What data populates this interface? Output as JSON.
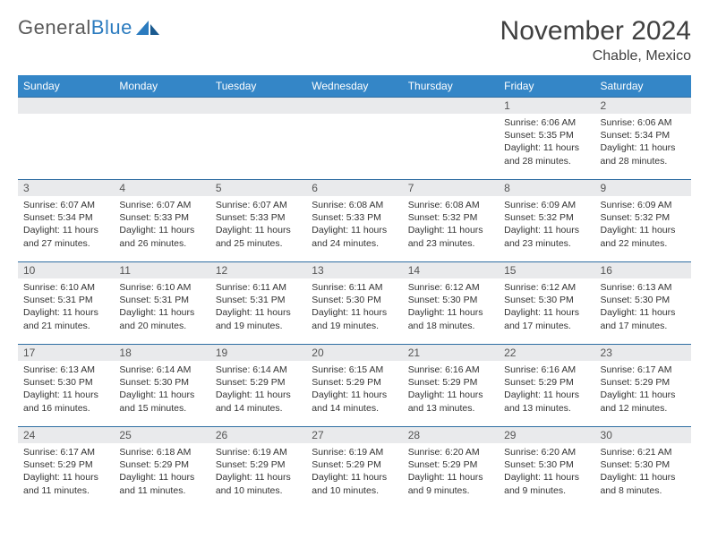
{
  "logo": {
    "text_gray": "General",
    "text_blue": "Blue"
  },
  "title": "November 2024",
  "location": "Chable, Mexico",
  "colors": {
    "header_bg": "#3486c7",
    "header_text": "#ffffff",
    "daynum_bg": "#e9eaec",
    "border": "#2f6ea3",
    "logo_gray": "#5a5a5a",
    "logo_blue": "#2b7bbf"
  },
  "day_names": [
    "Sunday",
    "Monday",
    "Tuesday",
    "Wednesday",
    "Thursday",
    "Friday",
    "Saturday"
  ],
  "weeks": [
    [
      {
        "empty": true
      },
      {
        "empty": true
      },
      {
        "empty": true
      },
      {
        "empty": true
      },
      {
        "empty": true
      },
      {
        "num": "1",
        "sunrise": "Sunrise: 6:06 AM",
        "sunset": "Sunset: 5:35 PM",
        "daylight": "Daylight: 11 hours and 28 minutes."
      },
      {
        "num": "2",
        "sunrise": "Sunrise: 6:06 AM",
        "sunset": "Sunset: 5:34 PM",
        "daylight": "Daylight: 11 hours and 28 minutes."
      }
    ],
    [
      {
        "num": "3",
        "sunrise": "Sunrise: 6:07 AM",
        "sunset": "Sunset: 5:34 PM",
        "daylight": "Daylight: 11 hours and 27 minutes."
      },
      {
        "num": "4",
        "sunrise": "Sunrise: 6:07 AM",
        "sunset": "Sunset: 5:33 PM",
        "daylight": "Daylight: 11 hours and 26 minutes."
      },
      {
        "num": "5",
        "sunrise": "Sunrise: 6:07 AM",
        "sunset": "Sunset: 5:33 PM",
        "daylight": "Daylight: 11 hours and 25 minutes."
      },
      {
        "num": "6",
        "sunrise": "Sunrise: 6:08 AM",
        "sunset": "Sunset: 5:33 PM",
        "daylight": "Daylight: 11 hours and 24 minutes."
      },
      {
        "num": "7",
        "sunrise": "Sunrise: 6:08 AM",
        "sunset": "Sunset: 5:32 PM",
        "daylight": "Daylight: 11 hours and 23 minutes."
      },
      {
        "num": "8",
        "sunrise": "Sunrise: 6:09 AM",
        "sunset": "Sunset: 5:32 PM",
        "daylight": "Daylight: 11 hours and 23 minutes."
      },
      {
        "num": "9",
        "sunrise": "Sunrise: 6:09 AM",
        "sunset": "Sunset: 5:32 PM",
        "daylight": "Daylight: 11 hours and 22 minutes."
      }
    ],
    [
      {
        "num": "10",
        "sunrise": "Sunrise: 6:10 AM",
        "sunset": "Sunset: 5:31 PM",
        "daylight": "Daylight: 11 hours and 21 minutes."
      },
      {
        "num": "11",
        "sunrise": "Sunrise: 6:10 AM",
        "sunset": "Sunset: 5:31 PM",
        "daylight": "Daylight: 11 hours and 20 minutes."
      },
      {
        "num": "12",
        "sunrise": "Sunrise: 6:11 AM",
        "sunset": "Sunset: 5:31 PM",
        "daylight": "Daylight: 11 hours and 19 minutes."
      },
      {
        "num": "13",
        "sunrise": "Sunrise: 6:11 AM",
        "sunset": "Sunset: 5:30 PM",
        "daylight": "Daylight: 11 hours and 19 minutes."
      },
      {
        "num": "14",
        "sunrise": "Sunrise: 6:12 AM",
        "sunset": "Sunset: 5:30 PM",
        "daylight": "Daylight: 11 hours and 18 minutes."
      },
      {
        "num": "15",
        "sunrise": "Sunrise: 6:12 AM",
        "sunset": "Sunset: 5:30 PM",
        "daylight": "Daylight: 11 hours and 17 minutes."
      },
      {
        "num": "16",
        "sunrise": "Sunrise: 6:13 AM",
        "sunset": "Sunset: 5:30 PM",
        "daylight": "Daylight: 11 hours and 17 minutes."
      }
    ],
    [
      {
        "num": "17",
        "sunrise": "Sunrise: 6:13 AM",
        "sunset": "Sunset: 5:30 PM",
        "daylight": "Daylight: 11 hours and 16 minutes."
      },
      {
        "num": "18",
        "sunrise": "Sunrise: 6:14 AM",
        "sunset": "Sunset: 5:30 PM",
        "daylight": "Daylight: 11 hours and 15 minutes."
      },
      {
        "num": "19",
        "sunrise": "Sunrise: 6:14 AM",
        "sunset": "Sunset: 5:29 PM",
        "daylight": "Daylight: 11 hours and 14 minutes."
      },
      {
        "num": "20",
        "sunrise": "Sunrise: 6:15 AM",
        "sunset": "Sunset: 5:29 PM",
        "daylight": "Daylight: 11 hours and 14 minutes."
      },
      {
        "num": "21",
        "sunrise": "Sunrise: 6:16 AM",
        "sunset": "Sunset: 5:29 PM",
        "daylight": "Daylight: 11 hours and 13 minutes."
      },
      {
        "num": "22",
        "sunrise": "Sunrise: 6:16 AM",
        "sunset": "Sunset: 5:29 PM",
        "daylight": "Daylight: 11 hours and 13 minutes."
      },
      {
        "num": "23",
        "sunrise": "Sunrise: 6:17 AM",
        "sunset": "Sunset: 5:29 PM",
        "daylight": "Daylight: 11 hours and 12 minutes."
      }
    ],
    [
      {
        "num": "24",
        "sunrise": "Sunrise: 6:17 AM",
        "sunset": "Sunset: 5:29 PM",
        "daylight": "Daylight: 11 hours and 11 minutes."
      },
      {
        "num": "25",
        "sunrise": "Sunrise: 6:18 AM",
        "sunset": "Sunset: 5:29 PM",
        "daylight": "Daylight: 11 hours and 11 minutes."
      },
      {
        "num": "26",
        "sunrise": "Sunrise: 6:19 AM",
        "sunset": "Sunset: 5:29 PM",
        "daylight": "Daylight: 11 hours and 10 minutes."
      },
      {
        "num": "27",
        "sunrise": "Sunrise: 6:19 AM",
        "sunset": "Sunset: 5:29 PM",
        "daylight": "Daylight: 11 hours and 10 minutes."
      },
      {
        "num": "28",
        "sunrise": "Sunrise: 6:20 AM",
        "sunset": "Sunset: 5:29 PM",
        "daylight": "Daylight: 11 hours and 9 minutes."
      },
      {
        "num": "29",
        "sunrise": "Sunrise: 6:20 AM",
        "sunset": "Sunset: 5:30 PM",
        "daylight": "Daylight: 11 hours and 9 minutes."
      },
      {
        "num": "30",
        "sunrise": "Sunrise: 6:21 AM",
        "sunset": "Sunset: 5:30 PM",
        "daylight": "Daylight: 11 hours and 8 minutes."
      }
    ]
  ]
}
